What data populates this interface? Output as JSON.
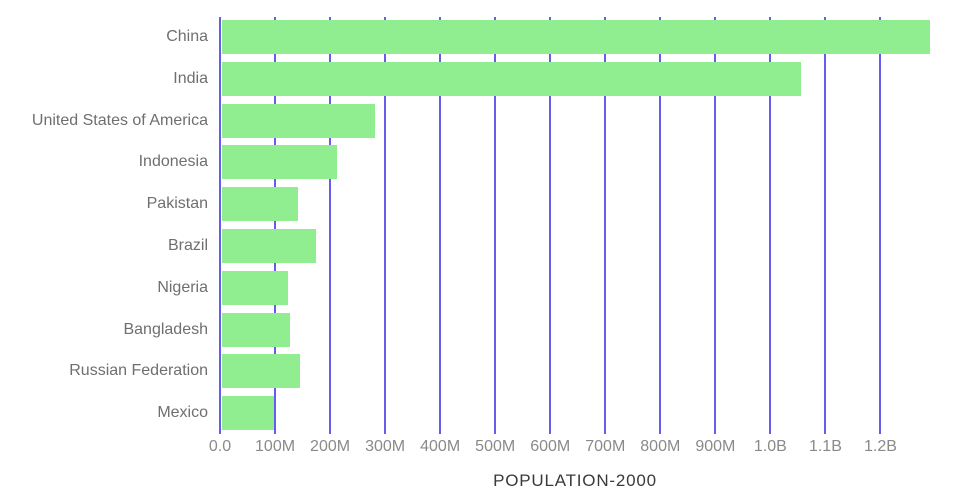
{
  "chart_data": {
    "type": "bar",
    "orientation": "horizontal",
    "title": "POPULATION-2000",
    "xlabel": "POPULATION-2000",
    "ylabel": "",
    "categories": [
      "China",
      "India",
      "United States of America",
      "Indonesia",
      "Pakistan",
      "Brazil",
      "Nigeria",
      "Bangladesh",
      "Russian Federation",
      "Mexico"
    ],
    "values_millions": [
      1290,
      1056,
      282,
      212,
      142,
      175,
      123,
      128,
      146,
      99
    ],
    "x_ticks": [
      {
        "label": "0.0",
        "value_millions": 0
      },
      {
        "label": "100M",
        "value_millions": 100
      },
      {
        "label": "200M",
        "value_millions": 200
      },
      {
        "label": "300M",
        "value_millions": 300
      },
      {
        "label": "400M",
        "value_millions": 400
      },
      {
        "label": "500M",
        "value_millions": 500
      },
      {
        "label": "600M",
        "value_millions": 600
      },
      {
        "label": "700M",
        "value_millions": 700
      },
      {
        "label": "800M",
        "value_millions": 800
      },
      {
        "label": "900M",
        "value_millions": 900
      },
      {
        "label": "1.0B",
        "value_millions": 1000
      },
      {
        "label": "1.1B",
        "value_millions": 1100
      },
      {
        "label": "1.2B",
        "value_millions": 1200
      }
    ],
    "xlim_millions": [
      0,
      1290
    ],
    "grid": true,
    "legend": false,
    "colors": {
      "bar": "#90EE90",
      "gridline": "#665CF0",
      "category_label_text": "#6F6F6F",
      "tick_label_text": "#8A8A8A",
      "title_text": "#3A3A3A",
      "background": "#FFFFFF"
    }
  }
}
